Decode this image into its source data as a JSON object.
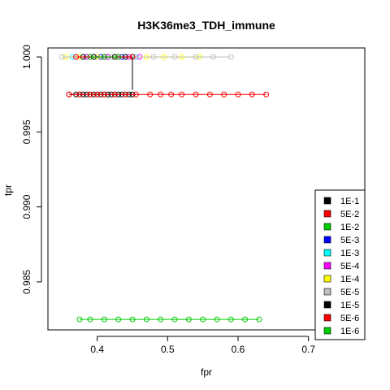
{
  "chart_data": {
    "type": "scatter",
    "title": "H3K36me3_TDH_immune",
    "xlabel": "fpr",
    "ylabel": "tpr",
    "xlim": [
      0.33,
      0.78
    ],
    "ylim": [
      0.9818,
      1.0006
    ],
    "x_ticks": [
      0.4,
      0.5,
      0.6,
      0.7
    ],
    "x_tick_labels": [
      "0.4",
      "0.5",
      "0.6",
      "0.7"
    ],
    "y_ticks": [
      0.985,
      0.99,
      0.995,
      1.0
    ],
    "y_tick_labels": [
      "0.985",
      "0.990",
      "0.995",
      "1.000"
    ],
    "legend_position": "bottom-right",
    "grid": false,
    "series": [
      {
        "name": "1E-1",
        "color": "#000000",
        "x": [
          0.36,
          0.37,
          0.375,
          0.38,
          0.385,
          0.39,
          0.395,
          0.4,
          0.405,
          0.41,
          0.415,
          0.42,
          0.425,
          0.43,
          0.435,
          0.44,
          0.445,
          0.45
        ],
        "y": [
          0.9975,
          0.9975,
          0.9975,
          0.9975,
          0.9975,
          0.9975,
          0.9975,
          0.9975,
          0.9975,
          0.9975,
          0.9975,
          0.9975,
          0.9975,
          0.9975,
          0.9975,
          0.9975,
          0.9975,
          0.9975
        ]
      },
      {
        "name": "5E-2",
        "color": "#ff0000",
        "x": [
          0.36,
          0.375,
          0.39,
          0.4,
          0.41,
          0.425,
          0.44,
          0.455,
          0.475,
          0.49,
          0.505,
          0.52,
          0.54,
          0.56,
          0.58,
          0.6,
          0.62,
          0.64
        ],
        "y": [
          0.9975,
          0.9975,
          0.9975,
          0.9975,
          0.9975,
          0.9975,
          0.9975,
          0.9975,
          0.9975,
          0.9975,
          0.9975,
          0.9975,
          0.9975,
          0.9975,
          0.9975,
          0.9975,
          0.9975,
          0.9975
        ]
      },
      {
        "name": "1E-2",
        "color": "#00cd00",
        "x": [
          0.375,
          0.39,
          0.41,
          0.43,
          0.45,
          0.47,
          0.49,
          0.51,
          0.53,
          0.55,
          0.57,
          0.59,
          0.61,
          0.63
        ],
        "y": [
          0.9825,
          0.9825,
          0.9825,
          0.9825,
          0.9825,
          0.9825,
          0.9825,
          0.9825,
          0.9825,
          0.9825,
          0.9825,
          0.9825,
          0.9825,
          0.9825
        ]
      },
      {
        "name": "5E-3",
        "color": "#0000ff",
        "x": [
          0.385,
          0.395,
          0.405,
          0.415,
          0.425,
          0.435
        ],
        "y": [
          1.0,
          1.0,
          1.0,
          1.0,
          1.0,
          1.0
        ]
      },
      {
        "name": "1E-3",
        "color": "#00ffff",
        "x": [
          0.365,
          0.38,
          0.395,
          0.41,
          0.425,
          0.44,
          0.455
        ],
        "y": [
          1.0,
          1.0,
          1.0,
          1.0,
          1.0,
          1.0,
          1.0
        ]
      },
      {
        "name": "5E-4",
        "color": "#ff00ff",
        "x": [
          0.37,
          0.385,
          0.4,
          0.415,
          0.43,
          0.445,
          0.46
        ],
        "y": [
          1.0,
          1.0,
          1.0,
          1.0,
          1.0,
          1.0,
          1.0
        ]
      },
      {
        "name": "1E-4",
        "color": "#ffff00",
        "x": [
          0.355,
          0.375,
          0.4,
          0.425,
          0.45,
          0.47,
          0.495,
          0.52,
          0.545
        ],
        "y": [
          1.0,
          1.0,
          1.0,
          1.0,
          1.0,
          1.0,
          1.0,
          1.0,
          1.0
        ]
      },
      {
        "name": "5E-5",
        "color": "#bebebe",
        "x": [
          0.35,
          0.37,
          0.39,
          0.42,
          0.45,
          0.48,
          0.51,
          0.54,
          0.565,
          0.59
        ],
        "y": [
          1.0,
          1.0,
          1.0,
          1.0,
          1.0,
          1.0,
          1.0,
          1.0,
          1.0,
          1.0
        ]
      },
      {
        "name": "1E-5",
        "color": "#000000",
        "x": [
          0.38,
          0.395,
          0.41,
          0.425,
          0.44,
          0.45
        ],
        "y": [
          1.0,
          1.0,
          1.0,
          1.0,
          1.0,
          1.0
        ]
      },
      {
        "name": "5E-6",
        "color": "#ff0000",
        "x": [
          0.37,
          0.39,
          0.41,
          0.43,
          0.45
        ],
        "y": [
          1.0,
          1.0,
          1.0,
          1.0,
          1.0
        ]
      },
      {
        "name": "1E-6",
        "color": "#00cd00",
        "x": [
          0.39,
          0.41,
          0.43
        ],
        "y": [
          1.0,
          1.0,
          1.0
        ]
      }
    ]
  }
}
